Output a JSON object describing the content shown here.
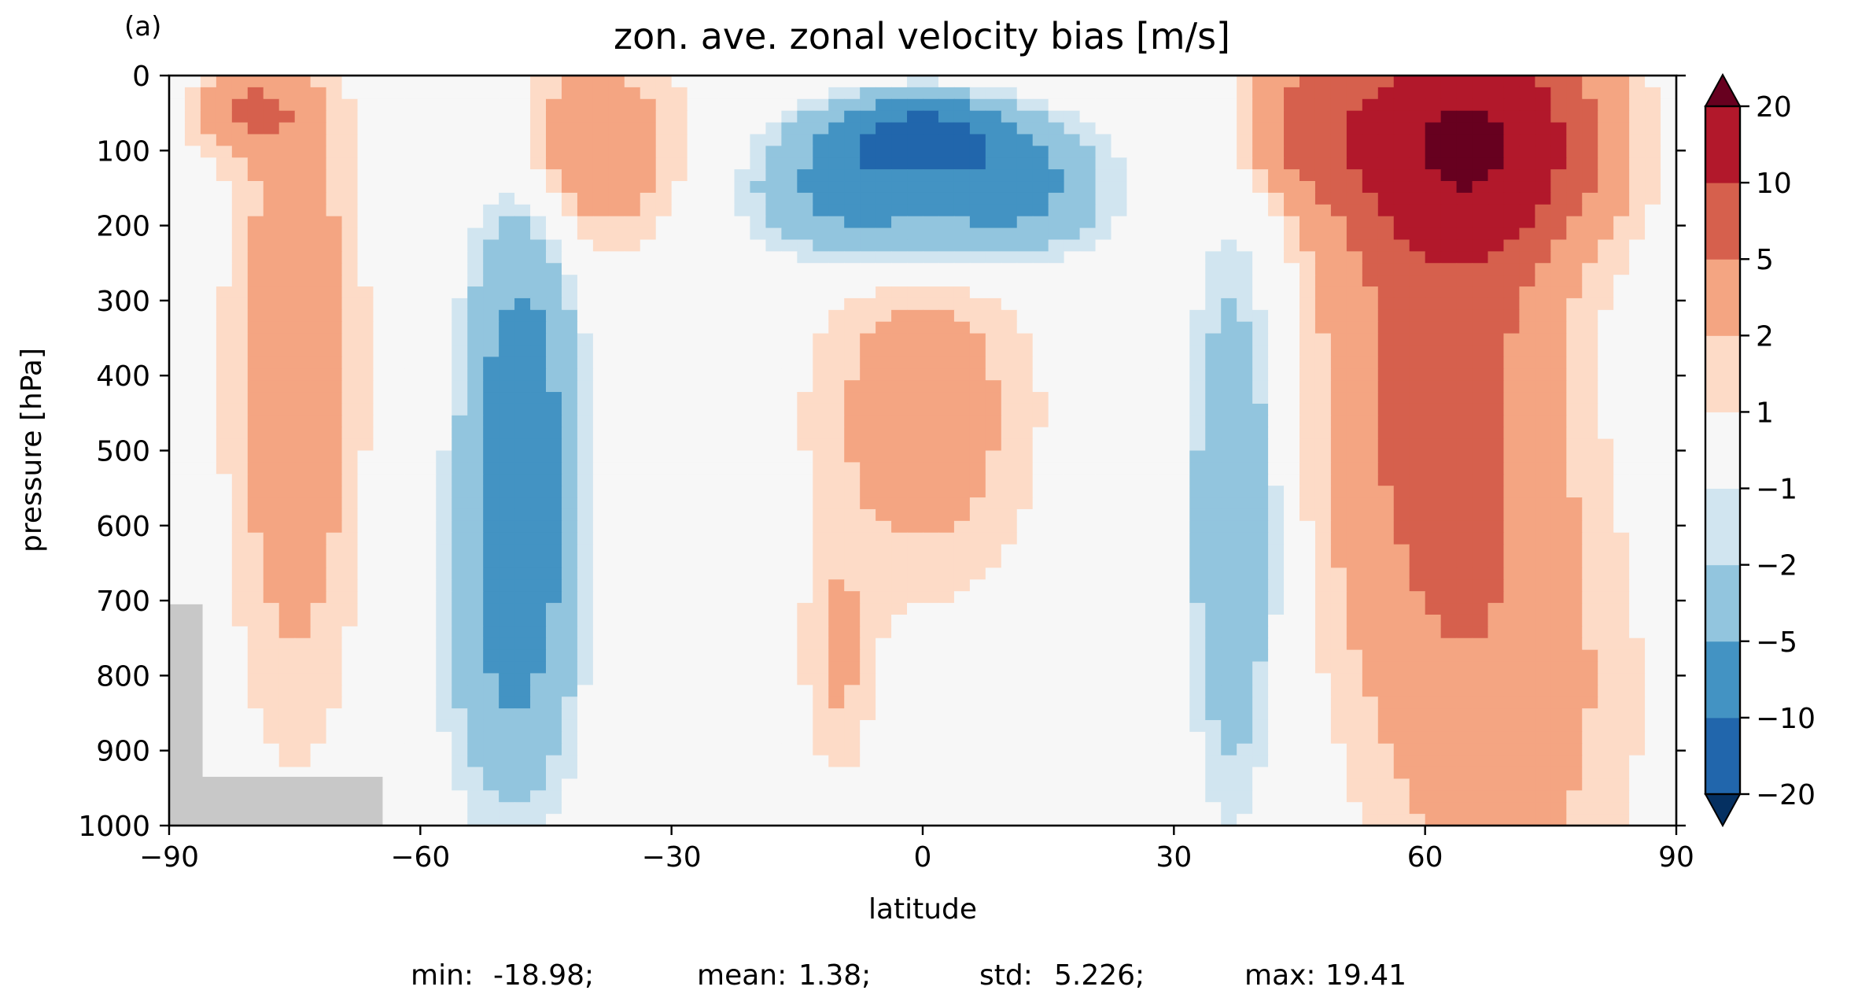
{
  "chart_data": {
    "type": "heatmap",
    "panel_label": "(a)",
    "title": "zon. ave. zonal velocity bias [m/s]",
    "xlabel": "latitude",
    "ylabel": "pressure [hPa]",
    "xlim": [
      -90,
      90
    ],
    "ylim": [
      1000,
      0
    ],
    "xticks": [
      -90,
      -60,
      -30,
      0,
      30,
      60,
      90
    ],
    "xtick_labels": [
      "−90",
      "−60",
      "−30",
      "0",
      "30",
      "60",
      "90"
    ],
    "yticks": [
      0,
      100,
      200,
      300,
      400,
      500,
      600,
      700,
      800,
      900,
      1000
    ],
    "ytick_labels": [
      "0",
      "100",
      "200",
      "300",
      "400",
      "500",
      "600",
      "700",
      "800",
      "900",
      "1000"
    ],
    "colorbar": {
      "extend": "both",
      "levels": [
        -20,
        -10,
        -5,
        -2,
        -1,
        1,
        2,
        5,
        10,
        20
      ],
      "tick_labels": [
        "−20",
        "−10",
        "−5",
        "−2",
        "−1",
        "1",
        "2",
        "5",
        "10",
        "20"
      ],
      "colors": [
        "#053061",
        "#2166ac",
        "#4393c3",
        "#92c5de",
        "#d1e5f0",
        "#f7f7f7",
        "#fddbc7",
        "#f4a582",
        "#d6604d",
        "#b2182b",
        "#67001f"
      ]
    },
    "missing_color": "#c8c8c8",
    "features": [
      {
        "lat": 65,
        "p": 90,
        "amp": 19,
        "wlat": 13,
        "wp": 130
      },
      {
        "lat": 62,
        "p": 400,
        "amp": 7,
        "wlat": 12,
        "wp": 380
      },
      {
        "lat": 70,
        "p": 850,
        "amp": 2.5,
        "wlat": 14,
        "wp": 300
      },
      {
        "lat": 46,
        "p": 60,
        "amp": 5,
        "wlat": 7,
        "wp": 90
      },
      {
        "lat": 0,
        "p": 80,
        "amp": -12,
        "wlat": 9,
        "wp": 45
      },
      {
        "lat": -8,
        "p": 140,
        "amp": -6,
        "wlat": 10,
        "wp": 80
      },
      {
        "lat": 10,
        "p": 140,
        "amp": -6,
        "wlat": 10,
        "wp": 80
      },
      {
        "lat": 0,
        "p": 180,
        "amp": -2.5,
        "wlat": 20,
        "wp": 90
      },
      {
        "lat": -48,
        "p": 500,
        "amp": -8,
        "wlat": 6,
        "wp": 330
      },
      {
        "lat": -50,
        "p": 750,
        "amp": -3,
        "wlat": 8,
        "wp": 250
      },
      {
        "lat": 37,
        "p": 600,
        "amp": -5,
        "wlat": 5,
        "wp": 340
      },
      {
        "lat": 0,
        "p": 450,
        "amp": 3,
        "wlat": 12,
        "wp": 220
      },
      {
        "lat": -10,
        "p": 780,
        "amp": 2,
        "wlat": 4,
        "wp": 150
      },
      {
        "lat": -75,
        "p": 400,
        "amp": 3.5,
        "wlat": 7,
        "wp": 420
      },
      {
        "lat": -40,
        "p": 100,
        "amp": 4,
        "wlat": 10,
        "wp": 120
      },
      {
        "lat": -80,
        "p": 50,
        "amp": 5,
        "wlat": 6,
        "wp": 50
      }
    ],
    "missing_regions": [
      {
        "lat_min": -90,
        "lat_max": -86,
        "p_min": 705
      },
      {
        "lat_min": -90,
        "lat_max": -64.5,
        "p_min": 935
      }
    ],
    "stats": [
      {
        "label": "min:",
        "value": "-18.98;"
      },
      {
        "label": "mean:",
        "value": "1.38;"
      },
      {
        "label": "std:",
        "value": "5.226;"
      },
      {
        "label": "max:",
        "value": "19.41"
      }
    ]
  }
}
